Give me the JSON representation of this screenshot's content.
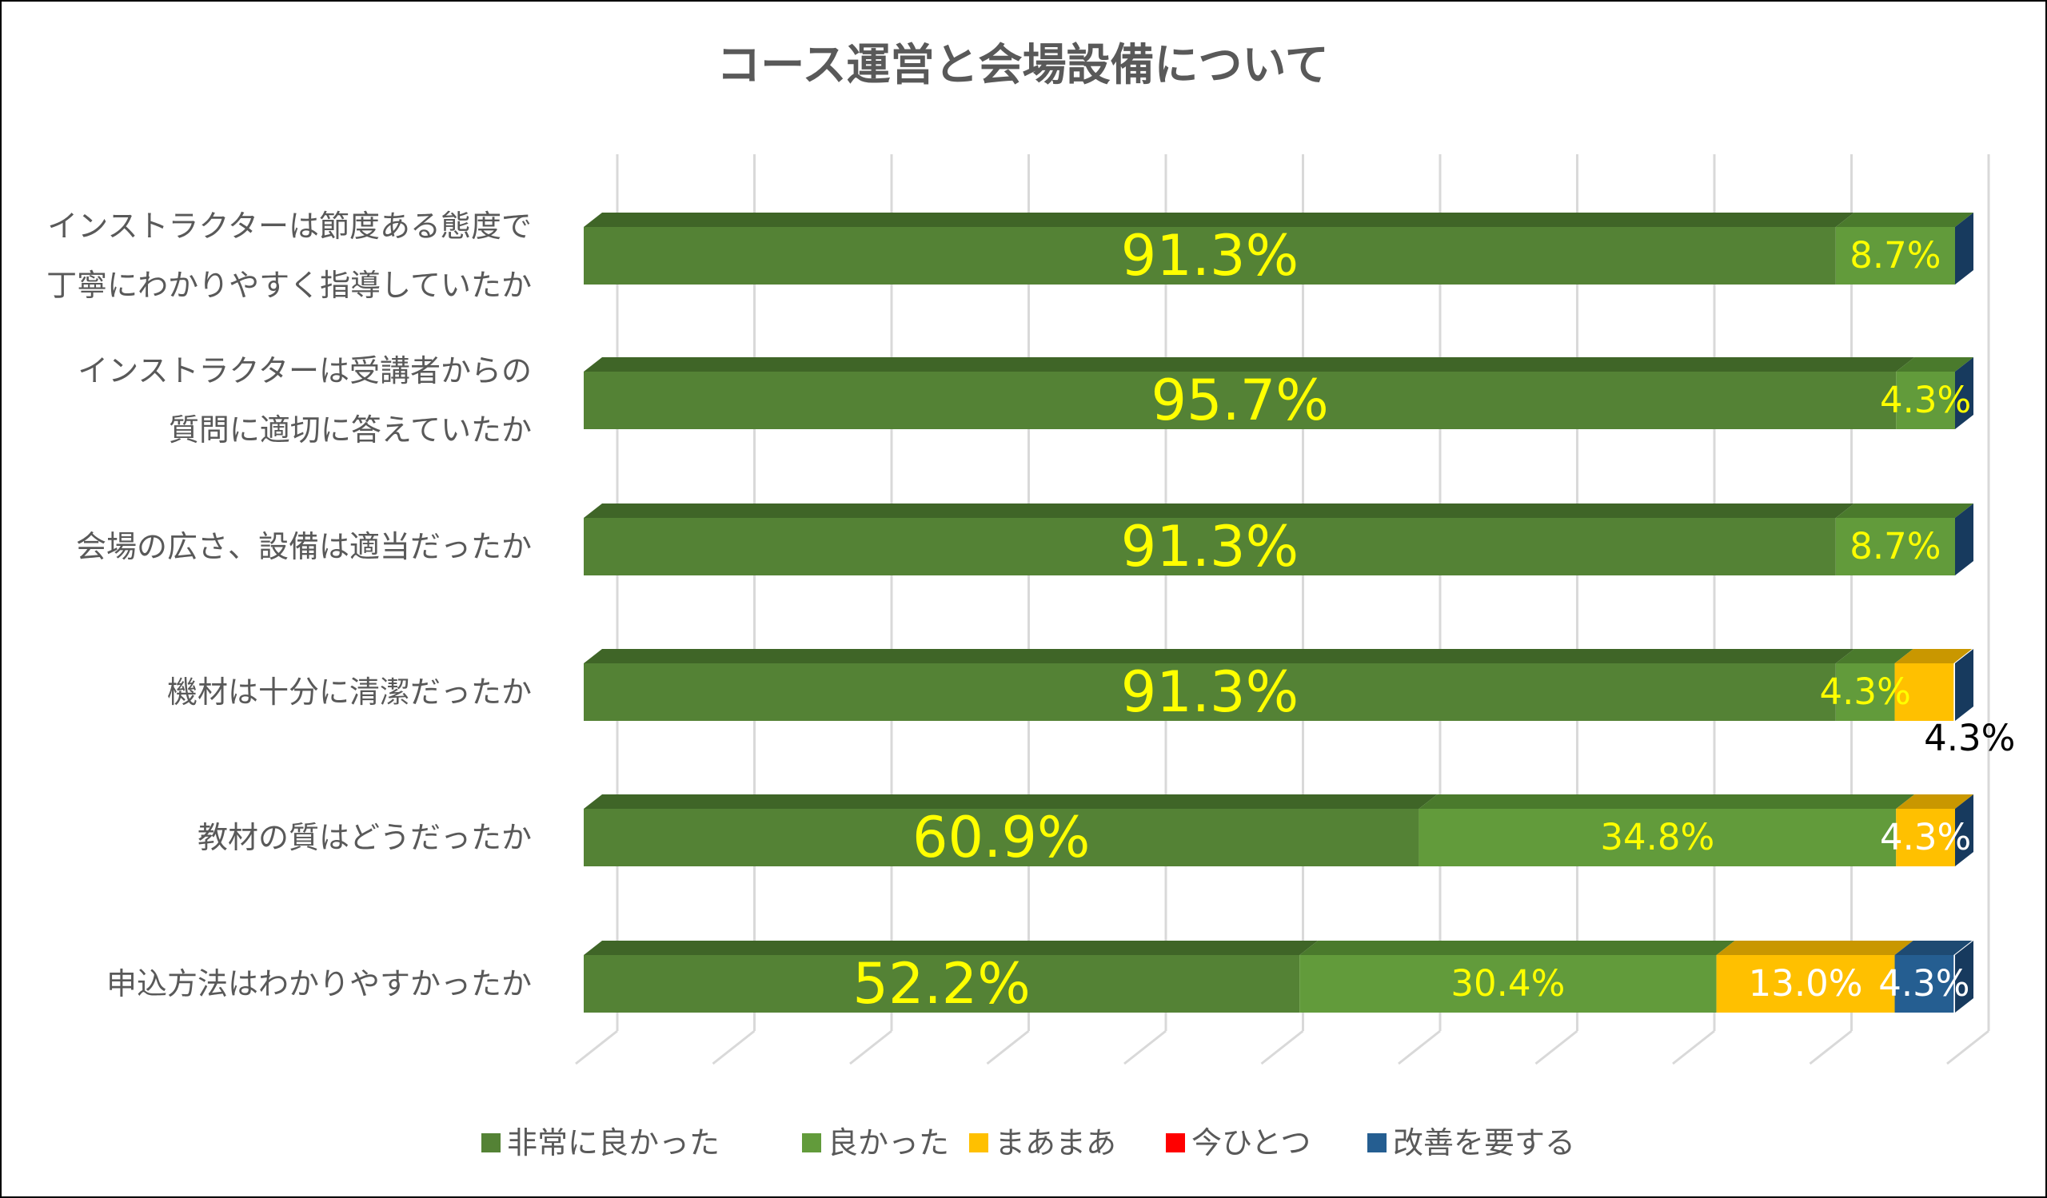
{
  "chart_data": {
    "type": "bar",
    "orientation": "horizontal",
    "stacked": "percent",
    "style": "3d",
    "title": "コース運営と会場設備について",
    "categories": [
      [
        "インストラクターは節度ある態度で",
        "丁寧にわかりやすく指導していたか"
      ],
      [
        "インストラクターは受講者からの",
        "質問に適切に答えていたか"
      ],
      [
        "会場の広さ、設備は適当だったか"
      ],
      [
        "機材は十分に清潔だったか"
      ],
      [
        "教材の質はどうだったか"
      ],
      [
        "申込方法はわかりやすかったか"
      ]
    ],
    "series": [
      {
        "name": "非常に良かった",
        "color": "#548235",
        "top": "#3f6527",
        "label_color": "#ffff00",
        "values": [
          91.3,
          95.7,
          91.3,
          91.3,
          60.9,
          52.2
        ]
      },
      {
        "name": "良かった",
        "color": "#629b3b",
        "top": "#4a7a2c",
        "label_color": "#ffff00",
        "values": [
          8.7,
          4.3,
          8.7,
          4.3,
          34.8,
          30.4
        ]
      },
      {
        "name": "まあまあ",
        "color": "#ffc000",
        "top": "#c99700",
        "label_color": "#ffffff",
        "values": [
          0,
          0,
          0,
          4.3,
          4.3,
          13.0
        ]
      },
      {
        "name": "今ひとつ",
        "color": "#ff0000",
        "top": "#c00000",
        "label_color": "#ffffff",
        "values": [
          0,
          0,
          0,
          0,
          0,
          0
        ]
      },
      {
        "name": "改善を要する",
        "color": "#255e91",
        "top": "#1e4a72",
        "label_color": "#ffffff",
        "values": [
          0,
          0,
          0,
          0,
          0,
          4.3
        ]
      }
    ],
    "side_color": "#173a5e",
    "xlim": [
      0,
      100
    ],
    "grid": true,
    "legend": "bottom"
  }
}
